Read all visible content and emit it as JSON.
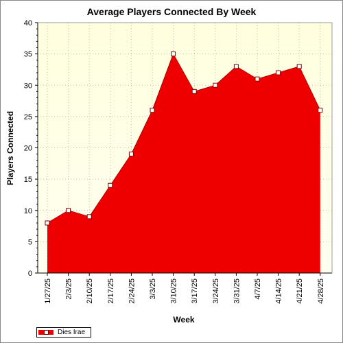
{
  "chart_data": {
    "type": "area",
    "title": "Average Players Connected By Week",
    "xlabel": "Week",
    "ylabel": "Players Connected",
    "categories": [
      "1/27/25",
      "2/3/25",
      "2/10/25",
      "2/17/25",
      "2/24/25",
      "3/3/25",
      "3/10/25",
      "3/17/25",
      "3/24/25",
      "3/31/25",
      "4/7/25",
      "4/14/25",
      "4/21/25",
      "4/28/25"
    ],
    "series": [
      {
        "name": "Dies Irae",
        "values": [
          8,
          10,
          9,
          14,
          19,
          26,
          35,
          29,
          30,
          33,
          31,
          32,
          33,
          26
        ]
      }
    ],
    "ylim": [
      0,
      40
    ],
    "yticks": [
      0,
      5,
      10,
      15,
      20,
      25,
      30,
      35,
      40
    ],
    "grid": true,
    "legend": "bottom-left",
    "colors": {
      "area": "#ee0000",
      "line": "#aa0000",
      "marker_fill": "#ffffff",
      "marker_stroke": "#800000",
      "plot_background_top": "#ffffdf",
      "plot_background_bottom": "#fffff0",
      "grid": "#bbbbbb"
    }
  }
}
